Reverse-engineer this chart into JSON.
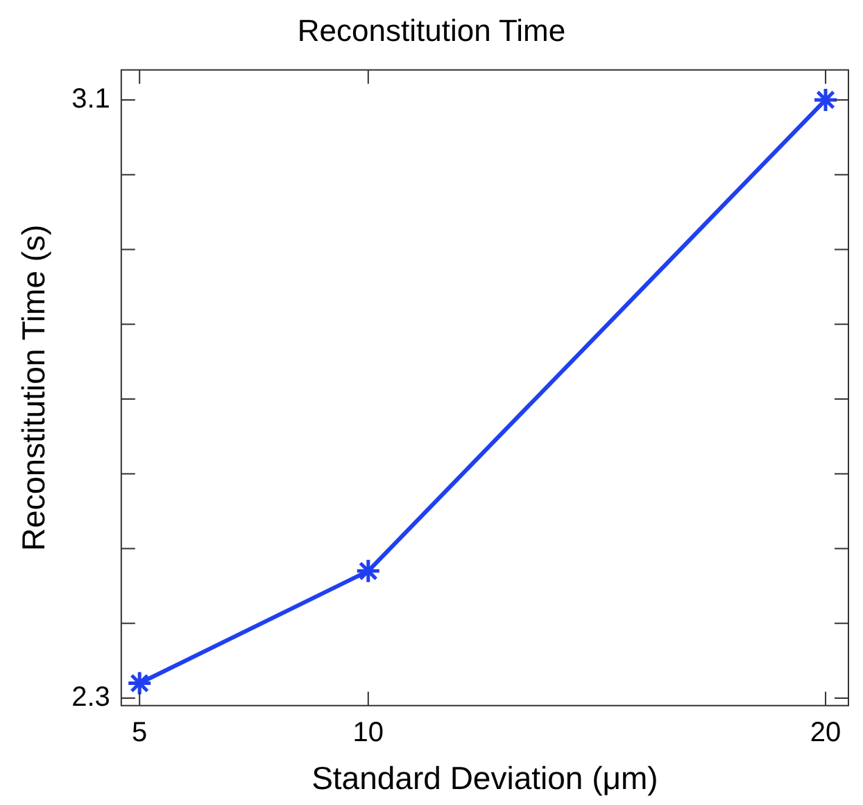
{
  "chart_data": {
    "type": "line",
    "title": "Reconstitution Time",
    "xlabel": "Standard Deviation (μm)",
    "ylabel": "Reconstitution Time (s)",
    "x": [
      5,
      10,
      20
    ],
    "series": [
      {
        "color": "#2040f0",
        "values": [
          2.32,
          2.47,
          3.1
        ]
      }
    ],
    "xlim": [
      4.6,
      20.5
    ],
    "xticks": [
      5,
      10,
      20
    ],
    "ylim": [
      2.29,
      3.14
    ],
    "yticks": [
      2.3,
      {
        "value": 2.4,
        "label": null
      },
      {
        "value": 2.5,
        "label": null
      },
      {
        "value": 2.6,
        "label": null
      },
      {
        "value": 2.7,
        "label": null
      },
      {
        "value": 2.8,
        "label": null
      },
      {
        "value": 2.9,
        "label": null
      },
      {
        "value": 3.0,
        "label": null
      },
      3.1
    ],
    "grid": false,
    "legend": false,
    "marker": "cross",
    "line_style": "solid"
  }
}
